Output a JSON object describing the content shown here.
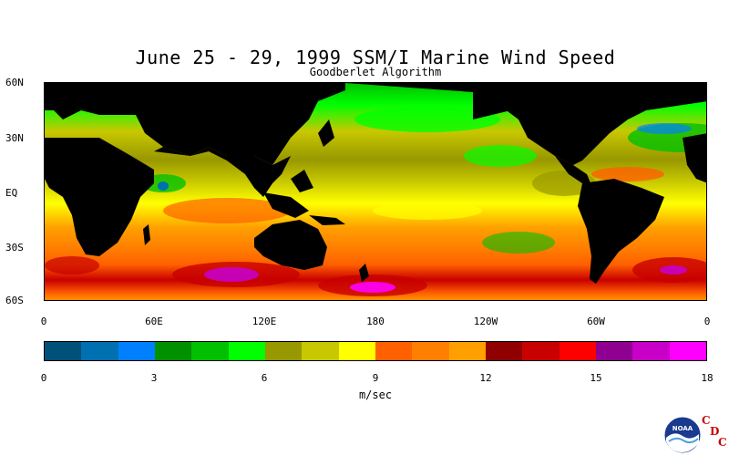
{
  "title": "June 25 - 29, 1999 SSM/I Marine Wind Speed",
  "subtitle": "Goodberlet Algorithm",
  "lat_labels": [
    "60N",
    "30N",
    "EQ",
    "30S",
    "60S"
  ],
  "lon_labels": [
    "0",
    "60E",
    "120E",
    "180",
    "120W",
    "60W",
    "0"
  ],
  "colorbar": {
    "colors": [
      "#00507a",
      "#0070b0",
      "#0080ff",
      "#009000",
      "#00c000",
      "#00ff00",
      "#989800",
      "#c8c800",
      "#ffff00",
      "#ff6000",
      "#ff8000",
      "#ffa000",
      "#900000",
      "#c80000",
      "#ff0000",
      "#900090",
      "#c800c8",
      "#ff00ff"
    ],
    "tick_labels": [
      "0",
      "3",
      "6",
      "9",
      "12",
      "15",
      "18"
    ],
    "units": "m/sec"
  },
  "logo": {
    "name": "NOAA",
    "text": "NOAA",
    "letters": [
      "C",
      "D",
      "C"
    ]
  },
  "colors": {
    "land": "#000000",
    "background": "#ffffff"
  }
}
